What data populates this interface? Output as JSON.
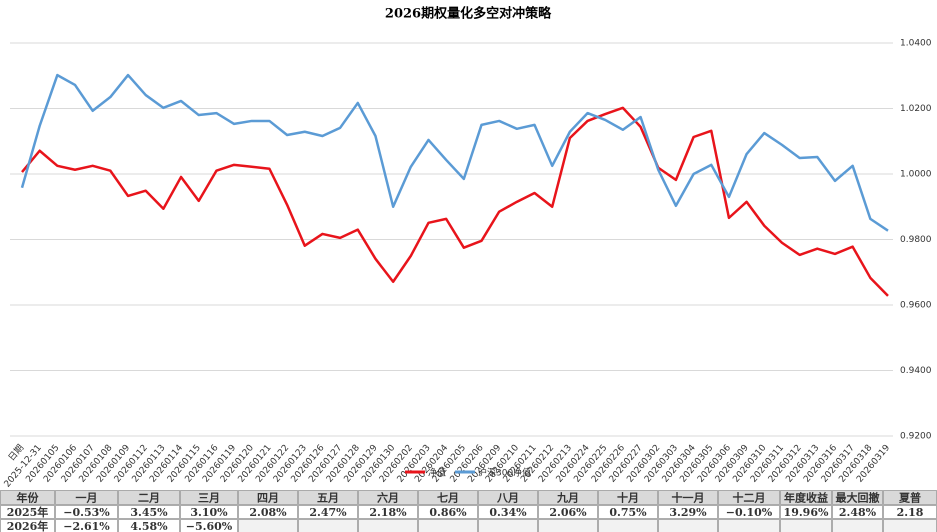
{
  "chart_data": {
    "type": "line",
    "title": "2026期权量化多空对冲策略",
    "categories": [
      "日期",
      "2025-12-31",
      "20260105",
      "20260106",
      "20260107",
      "20260108",
      "20260109",
      "20260112",
      "20260113",
      "20260114",
      "20260115",
      "20260116",
      "20260119",
      "20260120",
      "20260121",
      "20260122",
      "20260123",
      "20260126",
      "20260127",
      "20260128",
      "20260129",
      "20260130",
      "20260202",
      "20260203",
      "20260204",
      "20260205",
      "20260206",
      "20260209",
      "20260210",
      "20260211",
      "20260212",
      "20260213",
      "20260224",
      "20260225",
      "20260226",
      "20260227",
      "20260302",
      "20260303",
      "20260304",
      "20260305",
      "20260306",
      "20260309",
      "20260310",
      "20260311",
      "20260312",
      "20260313",
      "20260316",
      "20260317",
      "20260318",
      "20260319"
    ],
    "series": [
      {
        "name": "净值",
        "color": "#e8141b",
        "values": [
          1.0006,
          1.0071,
          1.0025,
          1.0013,
          1.0025,
          1.001,
          0.9933,
          0.9949,
          0.9894,
          0.9991,
          0.9918,
          1.001,
          1.0028,
          1.0022,
          1.0016,
          0.9906,
          0.9781,
          0.9817,
          0.9805,
          0.983,
          0.9741,
          0.9671,
          0.975,
          0.9851,
          0.9863,
          0.9775,
          0.9796,
          0.9885,
          0.9915,
          0.9942,
          0.99,
          1.011,
          1.0162,
          1.0183,
          1.0202,
          1.0144,
          1.0019,
          0.9982,
          1.0113,
          1.0132,
          0.9866,
          0.9915,
          0.9842,
          0.979,
          0.9753,
          0.9772,
          0.9756,
          0.9778,
          0.9683,
          0.9628
        ]
      },
      {
        "name": "沪深300净值",
        "color": "#5b9bd5",
        "values": [
          0.9958,
          1.0147,
          1.0302,
          1.0272,
          1.0193,
          1.0235,
          1.0302,
          1.0241,
          1.0202,
          1.0223,
          1.018,
          1.0186,
          1.0153,
          1.0162,
          1.0162,
          1.0119,
          1.0129,
          1.0116,
          1.0141,
          1.0217,
          1.0116,
          0.99,
          1.0022,
          1.0104,
          1.0043,
          0.9985,
          1.015,
          1.0162,
          1.0138,
          1.015,
          1.0025,
          1.0129,
          1.0186,
          1.0165,
          1.0135,
          1.0174,
          1.0013,
          0.9903,
          1.0,
          1.0028,
          0.993,
          1.0061,
          1.0125,
          1.0089,
          1.0049,
          1.0052,
          0.9979,
          1.0025,
          0.9863,
          0.9827
        ]
      }
    ],
    "ylim": [
      0.92,
      1.04
    ],
    "yticks": [
      {
        "value": 0.92,
        "label": "0.9200"
      },
      {
        "value": 0.94,
        "label": "0.9400"
      },
      {
        "value": 0.96,
        "label": "0.9600"
      },
      {
        "value": 0.98,
        "label": "0.9800"
      },
      {
        "value": 1.0,
        "label": "1.0000"
      },
      {
        "value": 1.02,
        "label": "1.0200"
      },
      {
        "value": 1.04,
        "label": "1.0400"
      }
    ],
    "grid": true
  },
  "table": {
    "header": [
      "年份",
      "一月",
      "二月",
      "三月",
      "四月",
      "五月",
      "六月",
      "七月",
      "八月",
      "九月",
      "十月",
      "十一月",
      "十二月",
      "年度收益",
      "最大回撤",
      "夏普"
    ],
    "rows": [
      [
        "2025年",
        "−0.53%",
        "3.45%",
        "3.10%",
        "2.08%",
        "2.47%",
        "2.18%",
        "0.86%",
        "0.34%",
        "2.06%",
        "0.75%",
        "3.29%",
        "−0.10%",
        "19.96%",
        "2.48%",
        "2.18"
      ],
      [
        "2026年",
        "−2.61%",
        "4.58%",
        "−5.60%"
      ]
    ]
  }
}
